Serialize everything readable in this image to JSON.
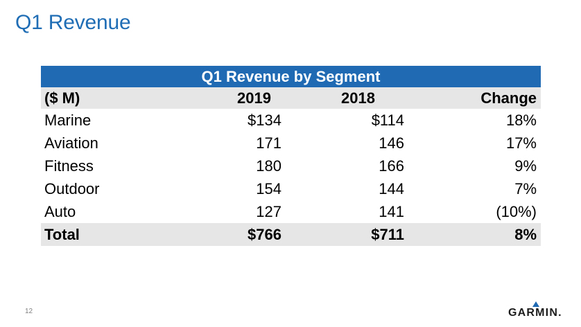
{
  "slide": {
    "title": "Q1 Revenue",
    "page_number": "12",
    "logo_text": "GARMIN."
  },
  "table": {
    "title": "Q1 Revenue by Segment",
    "headers": [
      "($ M)",
      "2019",
      "2018",
      "Change"
    ],
    "rows": [
      [
        "Marine",
        "$134",
        "$114",
        "18%"
      ],
      [
        "Aviation",
        "171",
        "146",
        "17%"
      ],
      [
        "Fitness",
        "180",
        "166",
        "9%"
      ],
      [
        "Outdoor",
        "154",
        "144",
        "7%"
      ],
      [
        "Auto",
        "127",
        "141",
        "(10%)"
      ]
    ],
    "total": [
      "Total",
      "$766",
      "$711",
      "8%"
    ]
  },
  "colors": {
    "title_blue": "#1f6db5",
    "table_header_blue": "#1f6ab3",
    "shaded_row": "#e6e6e6"
  }
}
